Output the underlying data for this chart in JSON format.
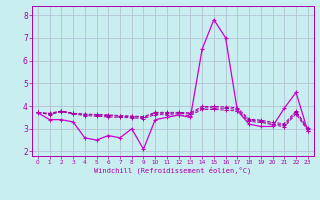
{
  "xlabel": "Windchill (Refroidissement éolien,°C)",
  "background_color": "#c8eef0",
  "grid_color": "#b0b8d0",
  "line_color": "#aa00aa",
  "line_color2": "#cc00cc",
  "x_values": [
    0,
    1,
    2,
    3,
    4,
    5,
    6,
    7,
    8,
    9,
    10,
    11,
    12,
    13,
    14,
    15,
    16,
    17,
    18,
    19,
    20,
    21,
    22,
    23
  ],
  "series_main": [
    3.7,
    3.4,
    3.4,
    3.3,
    2.6,
    2.5,
    2.7,
    2.6,
    3.0,
    2.1,
    3.4,
    3.5,
    3.6,
    3.5,
    6.5,
    7.8,
    7.0,
    3.8,
    3.2,
    3.1,
    3.1,
    3.9,
    4.6,
    2.9
  ],
  "series_flat": [
    [
      3.72,
      3.68,
      3.78,
      3.68,
      3.65,
      3.63,
      3.61,
      3.58,
      3.56,
      3.53,
      3.72,
      3.72,
      3.72,
      3.7,
      3.98,
      3.98,
      3.96,
      3.92,
      3.42,
      3.38,
      3.28,
      3.22,
      3.78,
      3.02
    ],
    [
      3.72,
      3.65,
      3.78,
      3.68,
      3.62,
      3.6,
      3.58,
      3.55,
      3.53,
      3.5,
      3.68,
      3.68,
      3.68,
      3.65,
      3.92,
      3.92,
      3.9,
      3.85,
      3.38,
      3.33,
      3.22,
      3.15,
      3.72,
      2.98
    ],
    [
      3.72,
      3.62,
      3.75,
      3.65,
      3.58,
      3.55,
      3.52,
      3.5,
      3.48,
      3.45,
      3.62,
      3.62,
      3.6,
      3.58,
      3.85,
      3.85,
      3.82,
      3.78,
      3.32,
      3.28,
      3.18,
      3.08,
      3.65,
      2.92
    ]
  ],
  "ylim": [
    1.8,
    8.4
  ],
  "yticks": [
    2,
    3,
    4,
    5,
    6,
    7,
    8
  ],
  "xtick_labels": [
    "0",
    "1",
    "2",
    "3",
    "4",
    "5",
    "6",
    "7",
    "8",
    "9",
    "10",
    "11",
    "12",
    "13",
    "14",
    "15",
    "16",
    "17",
    "18",
    "19",
    "20",
    "21",
    "22",
    "23"
  ],
  "figsize": [
    3.2,
    2.0
  ],
  "dpi": 100
}
